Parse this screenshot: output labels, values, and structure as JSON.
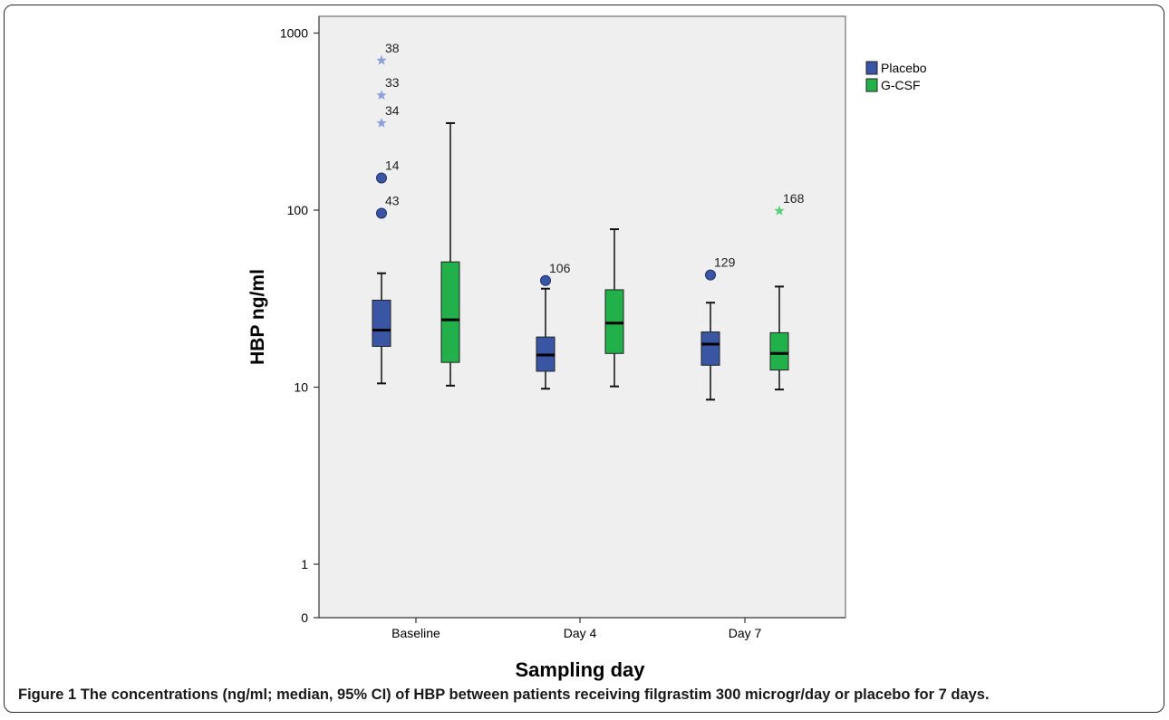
{
  "caption": {
    "figure_label": "Figure 1",
    "text": "The concentrations (ng/ml; median, 95% CI) of HBP between patients receiving filgrastim 300 microgr/day or placebo for 7 days."
  },
  "chart_data": {
    "type": "boxplot",
    "title": "",
    "xlabel": "Sampling day",
    "ylabel": "HBP ng/ml",
    "yscale": "log",
    "ylim": [
      0,
      2000
    ],
    "yticks": [
      0,
      1,
      10,
      100,
      1000
    ],
    "grid": false,
    "legend_position": "top-right",
    "plot_background": "#efefef",
    "categories": [
      "Baseline",
      "Day 4",
      "Day 7"
    ],
    "series": [
      {
        "name": "Placebo",
        "color": "#3a55a4",
        "outlier_star_color": "#8da0d8",
        "boxes": [
          {
            "category": "Baseline",
            "whisker_low": 10.5,
            "q1": 17,
            "median": 21,
            "q3": 31,
            "whisker_high": 44
          },
          {
            "category": "Day 4",
            "whisker_low": 9.8,
            "q1": 12.3,
            "median": 15.2,
            "q3": 19.2,
            "whisker_high": 36
          },
          {
            "category": "Day 7",
            "whisker_low": 8.5,
            "q1": 13.3,
            "median": 17.5,
            "q3": 20.5,
            "whisker_high": 30
          }
        ],
        "outliers": [
          {
            "category": "Baseline",
            "value": 700,
            "label": "38",
            "marker": "star"
          },
          {
            "category": "Baseline",
            "value": 445,
            "label": "33",
            "marker": "star"
          },
          {
            "category": "Baseline",
            "value": 310,
            "label": "34",
            "marker": "star"
          },
          {
            "category": "Baseline",
            "value": 152,
            "label": "14",
            "marker": "circle"
          },
          {
            "category": "Baseline",
            "value": 96,
            "label": "43",
            "marker": "circle"
          },
          {
            "category": "Day 4",
            "value": 40,
            "label": "106",
            "marker": "circle"
          },
          {
            "category": "Day 7",
            "value": 43,
            "label": "129",
            "marker": "circle"
          }
        ]
      },
      {
        "name": "G-CSF",
        "color": "#22b04a",
        "outlier_star_color": "#5ad07a",
        "boxes": [
          {
            "category": "Baseline",
            "whisker_low": 10.2,
            "q1": 13.8,
            "median": 24,
            "q3": 51,
            "whisker_high": 310
          },
          {
            "category": "Day 4",
            "whisker_low": 10.1,
            "q1": 15.5,
            "median": 23,
            "q3": 35.5,
            "whisker_high": 78
          },
          {
            "category": "Day 7",
            "whisker_low": 9.7,
            "q1": 12.5,
            "median": 15.5,
            "q3": 20.3,
            "whisker_high": 37
          }
        ],
        "outliers": [
          {
            "category": "Day 7",
            "value": 99,
            "label": "168",
            "marker": "star"
          }
        ]
      }
    ]
  }
}
